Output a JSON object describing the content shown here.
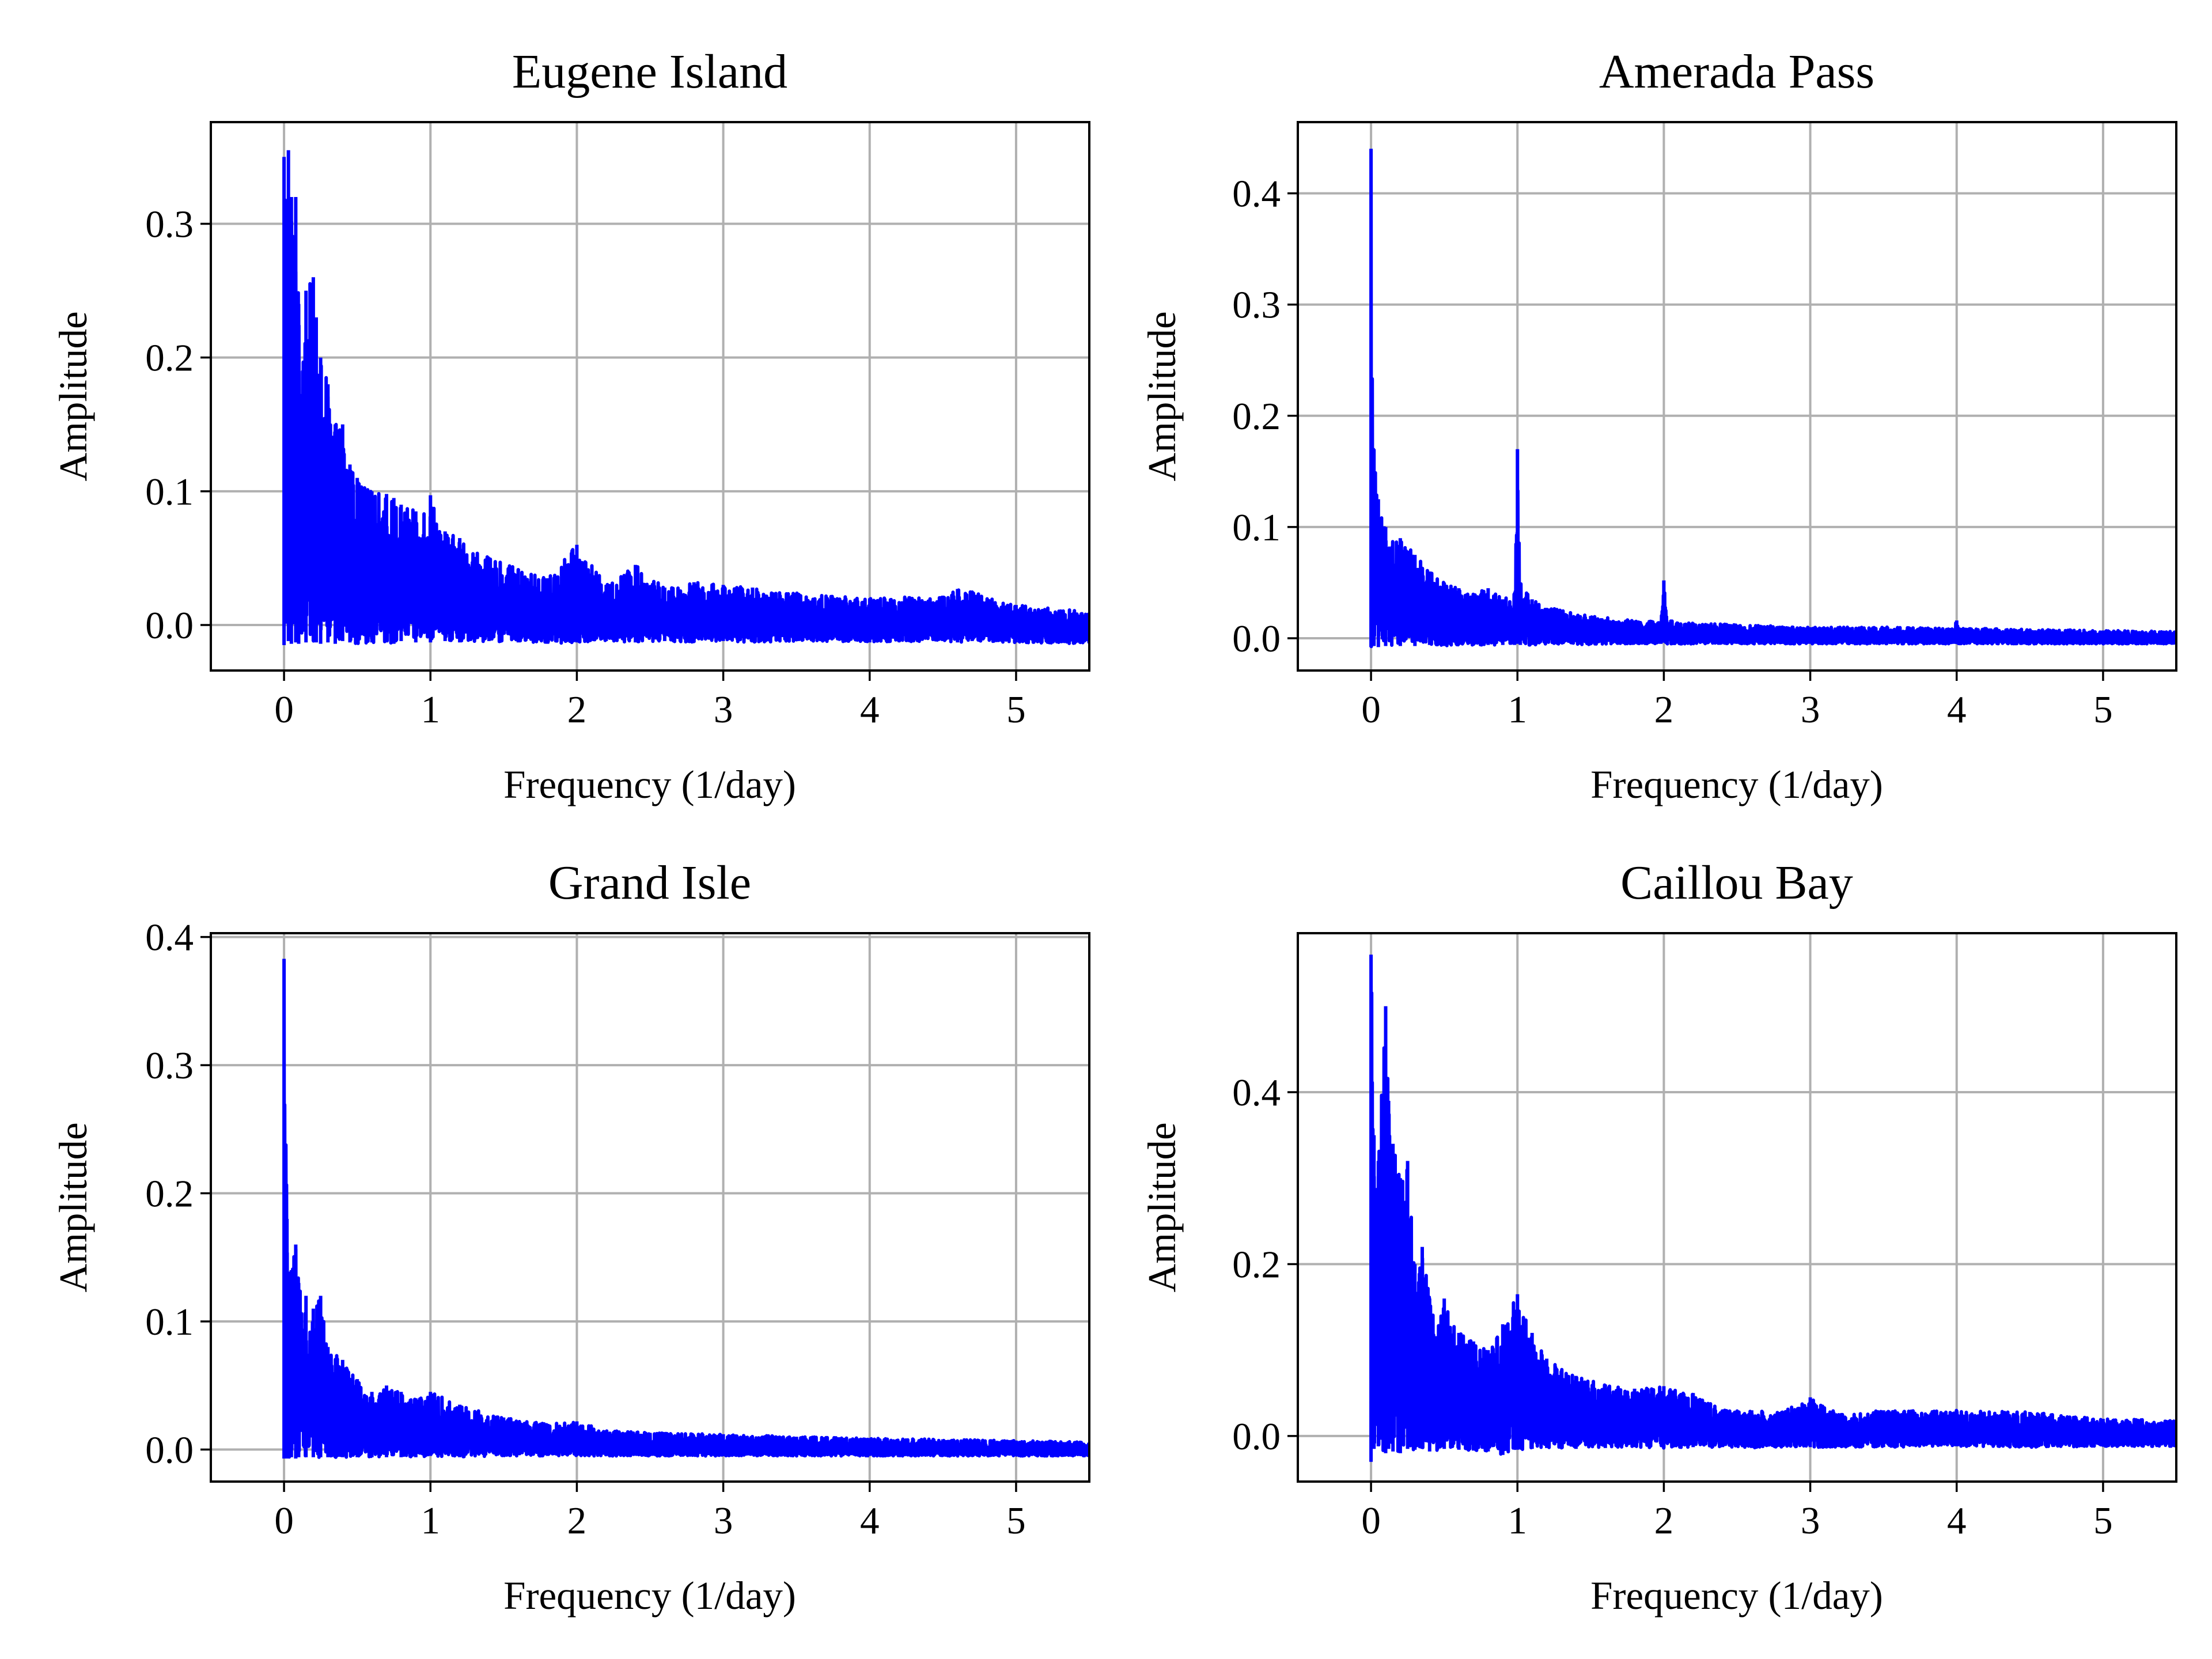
{
  "figure": {
    "colors": {
      "series": "#0000ff",
      "grid": "#b0b0b0",
      "axes": "#000000"
    }
  },
  "chart_data": [
    {
      "type": "line",
      "title": "Eugene Island",
      "xlabel": "Frequency (1/day)",
      "ylabel": "Amplitude",
      "xlim": [
        -0.5,
        5.5
      ],
      "ylim": [
        -0.034,
        0.376
      ],
      "xticks": [
        0,
        1,
        2,
        3,
        4,
        5
      ],
      "yticks": [
        0.0,
        0.1,
        0.2,
        0.3
      ],
      "xtick_labels": [
        "0",
        "1",
        "2",
        "3",
        "4",
        "5"
      ],
      "ytick_labels": [
        "0.0",
        "0.1",
        "0.2",
        "0.3"
      ],
      "grid": true,
      "series": [
        {
          "color": "#0000ff",
          "x": [
            0.0,
            0.03,
            0.05,
            0.08,
            0.1,
            0.15,
            0.2,
            0.22,
            0.25,
            0.3,
            0.35,
            0.4,
            0.45,
            0.5,
            0.6,
            0.7,
            0.75,
            0.8,
            0.9,
            1.0,
            1.1,
            1.2,
            1.4,
            1.6,
            1.8,
            2.0,
            2.2,
            2.4,
            2.6,
            2.8,
            3.0,
            3.2,
            3.5,
            4.0,
            4.5,
            4.6,
            4.7,
            5.0,
            5.5
          ],
          "envelope": [
            0.35,
            0.355,
            0.32,
            0.32,
            0.24,
            0.25,
            0.26,
            0.23,
            0.2,
            0.18,
            0.15,
            0.15,
            0.12,
            0.11,
            0.1,
            0.098,
            0.095,
            0.09,
            0.085,
            0.097,
            0.07,
            0.065,
            0.05,
            0.042,
            0.035,
            0.06,
            0.03,
            0.045,
            0.028,
            0.032,
            0.03,
            0.028,
            0.024,
            0.02,
            0.022,
            0.027,
            0.025,
            0.015,
            0.01
          ],
          "floor": [
            -0.015,
            -0.012,
            -0.014,
            -0.013,
            -0.014,
            -0.013,
            -0.012,
            -0.013,
            -0.014,
            -0.013,
            -0.014,
            -0.012,
            -0.013,
            -0.014,
            -0.013,
            -0.013,
            -0.014,
            -0.012,
            -0.013,
            -0.013,
            -0.012,
            -0.013,
            -0.012,
            -0.013,
            -0.014,
            -0.013,
            -0.012,
            -0.013,
            -0.012,
            -0.013,
            -0.012,
            -0.013,
            -0.012,
            -0.013,
            -0.012,
            -0.013,
            -0.012,
            -0.013,
            -0.014
          ]
        }
      ]
    },
    {
      "type": "line",
      "title": "Amerada Pass",
      "xlabel": "Frequency (1/day)",
      "ylabel": "Amplitude",
      "xlim": [
        -0.5,
        5.5
      ],
      "ylim": [
        -0.029,
        0.464
      ],
      "xticks": [
        0,
        1,
        2,
        3,
        4,
        5
      ],
      "yticks": [
        0.0,
        0.1,
        0.2,
        0.3,
        0.4
      ],
      "xtick_labels": [
        "0",
        "1",
        "2",
        "3",
        "4",
        "5"
      ],
      "ytick_labels": [
        "0.0",
        "0.1",
        "0.2",
        "0.3",
        "0.4"
      ],
      "grid": true,
      "series": [
        {
          "color": "#0000ff",
          "x": [
            0.0,
            0.02,
            0.05,
            0.1,
            0.2,
            0.3,
            0.4,
            0.5,
            0.6,
            0.7,
            0.8,
            0.9,
            0.98,
            1.0,
            1.02,
            1.1,
            1.3,
            1.5,
            1.8,
            1.98,
            2.0,
            2.02,
            2.2,
            2.5,
            3.0,
            3.5,
            3.98,
            4.0,
            4.02,
            4.5,
            5.0,
            5.5
          ],
          "envelope": [
            0.44,
            0.17,
            0.125,
            0.1,
            0.09,
            0.075,
            0.06,
            0.05,
            0.045,
            0.04,
            0.045,
            0.035,
            0.04,
            0.17,
            0.05,
            0.035,
            0.025,
            0.02,
            0.016,
            0.015,
            0.052,
            0.016,
            0.014,
            0.012,
            0.01,
            0.01,
            0.009,
            0.016,
            0.009,
            0.008,
            0.007,
            0.006
          ],
          "floor": [
            -0.008,
            -0.007,
            -0.008,
            -0.007,
            -0.007,
            -0.007,
            -0.006,
            -0.007,
            -0.006,
            -0.006,
            -0.006,
            -0.006,
            -0.006,
            -0.005,
            -0.006,
            -0.006,
            -0.005,
            -0.006,
            -0.005,
            -0.005,
            -0.004,
            -0.005,
            -0.005,
            -0.005,
            -0.005,
            -0.005,
            -0.005,
            -0.005,
            -0.005,
            -0.005,
            -0.005,
            -0.005
          ]
        }
      ]
    },
    {
      "type": "line",
      "title": "Grand Isle",
      "xlabel": "Frequency (1/day)",
      "ylabel": "Amplitude",
      "xlim": [
        -0.5,
        5.5
      ],
      "ylim": [
        -0.025,
        0.403
      ],
      "xticks": [
        0,
        1,
        2,
        3,
        4,
        5
      ],
      "yticks": [
        0.0,
        0.1,
        0.2,
        0.3,
        0.4
      ],
      "xtick_labels": [
        "0",
        "1",
        "2",
        "3",
        "4",
        "5"
      ],
      "ytick_labels": [
        "0.0",
        "0.1",
        "0.2",
        "0.3",
        "0.4"
      ],
      "grid": true,
      "series": [
        {
          "color": "#0000ff",
          "x": [
            0.0,
            0.02,
            0.05,
            0.08,
            0.1,
            0.15,
            0.2,
            0.25,
            0.3,
            0.4,
            0.5,
            0.6,
            0.7,
            0.8,
            0.9,
            1.0,
            1.2,
            1.5,
            1.8,
            2.0,
            2.2,
            2.5,
            3.0,
            3.5,
            4.0,
            4.5,
            5.0,
            5.5
          ],
          "envelope": [
            0.383,
            0.18,
            0.14,
            0.16,
            0.13,
            0.12,
            0.11,
            0.12,
            0.08,
            0.07,
            0.055,
            0.045,
            0.05,
            0.045,
            0.04,
            0.045,
            0.035,
            0.025,
            0.02,
            0.022,
            0.015,
            0.013,
            0.012,
            0.01,
            0.009,
            0.008,
            0.007,
            0.006
          ],
          "floor": [
            -0.007,
            -0.007,
            -0.006,
            -0.007,
            -0.006,
            -0.006,
            -0.006,
            -0.006,
            -0.006,
            -0.006,
            -0.006,
            -0.006,
            -0.006,
            -0.006,
            -0.006,
            -0.005,
            -0.006,
            -0.005,
            -0.005,
            -0.005,
            -0.005,
            -0.005,
            -0.005,
            -0.005,
            -0.005,
            -0.005,
            -0.005,
            -0.005
          ]
        }
      ]
    },
    {
      "type": "line",
      "title": "Caillou Bay",
      "xlabel": "Frequency (1/day)",
      "ylabel": "Amplitude",
      "xlim": [
        -0.5,
        5.5
      ],
      "ylim": [
        -0.053,
        0.585
      ],
      "xticks": [
        0,
        1,
        2,
        3,
        4,
        5
      ],
      "yticks": [
        0.0,
        0.2,
        0.4
      ],
      "xtick_labels": [
        "0",
        "1",
        "2",
        "3",
        "4",
        "5"
      ],
      "ytick_labels": [
        "0.0",
        "0.2",
        "0.4"
      ],
      "grid": true,
      "series": [
        {
          "color": "#0000ff",
          "x": [
            0.0,
            0.02,
            0.05,
            0.1,
            0.12,
            0.15,
            0.2,
            0.25,
            0.3,
            0.35,
            0.4,
            0.5,
            0.6,
            0.7,
            0.8,
            0.9,
            1.0,
            1.1,
            1.2,
            1.4,
            1.6,
            1.8,
            2.0,
            2.2,
            2.4,
            2.6,
            2.8,
            3.0,
            3.2,
            3.5,
            4.0,
            4.5,
            5.0,
            5.5
          ],
          "envelope": [
            0.56,
            0.35,
            0.32,
            0.5,
            0.39,
            0.34,
            0.3,
            0.32,
            0.2,
            0.22,
            0.16,
            0.16,
            0.12,
            0.11,
            0.1,
            0.13,
            0.165,
            0.12,
            0.09,
            0.07,
            0.06,
            0.055,
            0.058,
            0.05,
            0.03,
            0.03,
            0.028,
            0.045,
            0.025,
            0.03,
            0.03,
            0.028,
            0.02,
            0.018
          ],
          "floor": [
            -0.03,
            -0.015,
            -0.012,
            -0.02,
            -0.015,
            -0.018,
            -0.02,
            -0.015,
            -0.016,
            -0.015,
            -0.018,
            -0.015,
            -0.016,
            -0.017,
            -0.018,
            -0.022,
            -0.016,
            -0.015,
            -0.014,
            -0.015,
            -0.014,
            -0.013,
            -0.014,
            -0.013,
            -0.013,
            -0.014,
            -0.013,
            -0.013,
            -0.013,
            -0.013,
            -0.012,
            -0.013,
            -0.012,
            -0.012
          ]
        }
      ]
    }
  ]
}
